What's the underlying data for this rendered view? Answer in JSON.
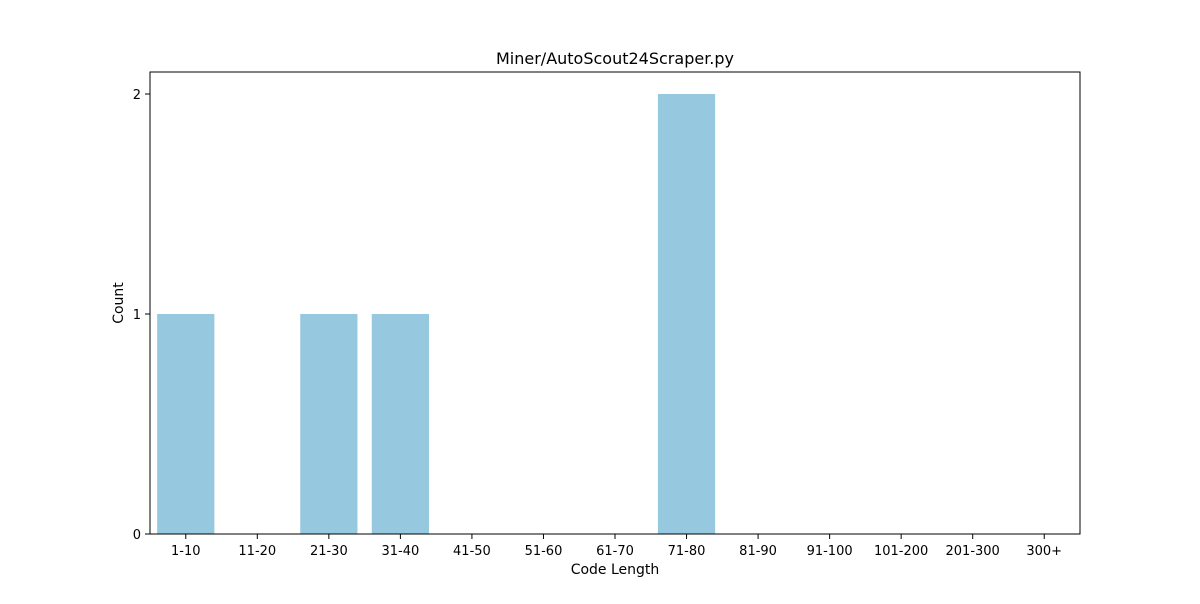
{
  "chart_data": {
    "type": "bar",
    "title": "Miner/AutoScout24Scraper.py",
    "xlabel": "Code Length",
    "ylabel": "Count",
    "categories": [
      "1-10",
      "11-20",
      "21-30",
      "31-40",
      "41-50",
      "51-60",
      "61-70",
      "71-80",
      "81-90",
      "91-100",
      "101-200",
      "201-300",
      "300+"
    ],
    "values": [
      1,
      0,
      1,
      1,
      0,
      0,
      0,
      2,
      0,
      0,
      0,
      0,
      0
    ],
    "yticks": [
      0,
      1,
      2
    ],
    "ylim": [
      0,
      2.1
    ],
    "grid": false,
    "legend": false,
    "bar_color": "#96c9df"
  }
}
